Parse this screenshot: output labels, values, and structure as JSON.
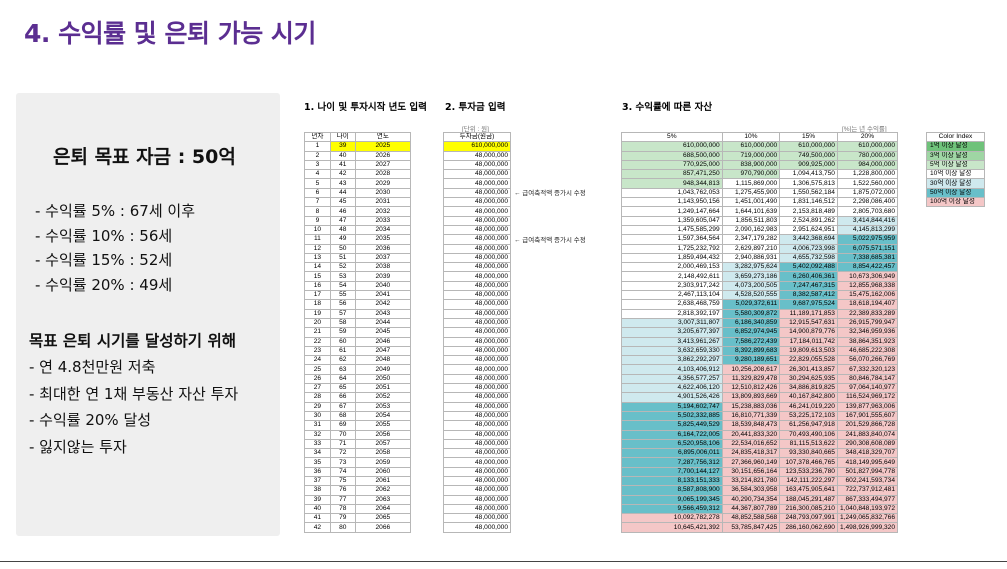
{
  "title": "4. 수익률 및 은퇴 가능 시기",
  "panel": {
    "goal": "은퇴 목표 자금 : 50억",
    "rates": [
      "- 수익률   5% : 67세 이후",
      "- 수익률 10% : 56세",
      "- 수익률 15% : 52세",
      "- 수익률 20% : 49세"
    ],
    "plan_title": "목표 은퇴 시기를 달성하기 위해",
    "plan_items": [
      "- 연 4.8천만원 저축",
      "- 최대한 연 1채 부동산 자산 투자",
      "- 수익률 20% 달성",
      "- 잃지않는 투자"
    ]
  },
  "sections": {
    "s1": "1. 나이 및 투자시작 년도 입력",
    "s2": "2. 투자금 입력",
    "s3": "3. 수익률에 따른 자산"
  },
  "units": {
    "invest": "[단위 : 원]",
    "assets": "[%]는 년 수익률]"
  },
  "headers": {
    "years": [
      "년차",
      "나이",
      "연도"
    ],
    "invest": "투자금(원금)",
    "assets": [
      "5%",
      "10%",
      "15%",
      "20%"
    ]
  },
  "notes": [
    "← 급여축적액 증가시 수정",
    "← 급여축적액 증가시 수정"
  ],
  "legend": {
    "header": "Color Index",
    "items": [
      "1억 이상 달성",
      "3억 이상 달성",
      "5억 이상 달성",
      "10억 이상 달성",
      "30억 이상 달성",
      "50억 이상 달성",
      "100억 이상 달성"
    ],
    "colors": [
      "#6fc27a",
      "#9fd6a4",
      "#c8e6c9",
      "#ffffff",
      "#cfe9ee",
      "#68bfc9",
      "#f4c7c7"
    ]
  },
  "colors": {
    "title": "#5b2e91",
    "start_highlight": "#ffff00"
  },
  "rows": [
    [
      "1",
      "39",
      "2025",
      "610,000,000",
      "610,000,000",
      "610,000,000",
      "610,000,000",
      "610,000,000"
    ],
    [
      "2",
      "40",
      "2026",
      "48,000,000",
      "688,500,000",
      "719,000,000",
      "749,500,000",
      "780,000,000"
    ],
    [
      "3",
      "41",
      "2027",
      "48,000,000",
      "770,925,000",
      "838,900,000",
      "909,925,000",
      "984,000,000"
    ],
    [
      "4",
      "42",
      "2028",
      "48,000,000",
      "857,471,250",
      "970,790,000",
      "1,094,413,750",
      "1,228,800,000"
    ],
    [
      "5",
      "43",
      "2029",
      "48,000,000",
      "948,344,813",
      "1,115,869,000",
      "1,306,575,813",
      "1,522,560,000"
    ],
    [
      "6",
      "44",
      "2030",
      "48,000,000",
      "1,043,762,053",
      "1,275,455,900",
      "1,550,562,184",
      "1,875,072,000"
    ],
    [
      "7",
      "45",
      "2031",
      "48,000,000",
      "1,143,950,156",
      "1,451,001,490",
      "1,831,146,512",
      "2,298,086,400"
    ],
    [
      "8",
      "46",
      "2032",
      "48,000,000",
      "1,249,147,664",
      "1,644,101,639",
      "2,153,818,489",
      "2,805,703,680"
    ],
    [
      "9",
      "47",
      "2033",
      "48,000,000",
      "1,359,605,047",
      "1,856,511,803",
      "2,524,891,262",
      "3,414,844,416"
    ],
    [
      "10",
      "48",
      "2034",
      "48,000,000",
      "1,475,585,299",
      "2,090,162,983",
      "2,951,624,951",
      "4,145,813,299"
    ],
    [
      "11",
      "49",
      "2035",
      "48,000,000",
      "1,597,364,564",
      "2,347,179,282",
      "3,442,368,694",
      "5,022,975,959"
    ],
    [
      "12",
      "50",
      "2036",
      "48,000,000",
      "1,725,232,792",
      "2,629,897,210",
      "4,006,723,998",
      "6,075,571,151"
    ],
    [
      "13",
      "51",
      "2037",
      "48,000,000",
      "1,859,494,432",
      "2,940,886,931",
      "4,655,732,598",
      "7,338,685,381"
    ],
    [
      "14",
      "52",
      "2038",
      "48,000,000",
      "2,000,469,153",
      "3,282,975,624",
      "5,402,092,488",
      "8,854,422,457"
    ],
    [
      "15",
      "53",
      "2039",
      "48,000,000",
      "2,148,492,611",
      "3,659,273,186",
      "6,260,406,361",
      "10,673,306,949"
    ],
    [
      "16",
      "54",
      "2040",
      "48,000,000",
      "2,303,917,242",
      "4,073,200,505",
      "7,247,467,315",
      "12,855,968,338"
    ],
    [
      "17",
      "55",
      "2041",
      "48,000,000",
      "2,467,113,104",
      "4,528,520,555",
      "8,382,587,412",
      "15,475,162,006"
    ],
    [
      "18",
      "56",
      "2042",
      "48,000,000",
      "2,638,468,759",
      "5,029,372,611",
      "9,687,975,524",
      "18,618,194,407"
    ],
    [
      "19",
      "57",
      "2043",
      "48,000,000",
      "2,818,392,197",
      "5,580,309,872",
      "11,189,171,853",
      "22,389,833,289"
    ],
    [
      "20",
      "58",
      "2044",
      "48,000,000",
      "3,007,311,807",
      "6,186,340,859",
      "12,915,547,631",
      "26,915,799,947"
    ],
    [
      "21",
      "59",
      "2045",
      "48,000,000",
      "3,205,677,397",
      "6,852,974,945",
      "14,900,879,776",
      "32,346,959,936"
    ],
    [
      "22",
      "60",
      "2046",
      "48,000,000",
      "3,413,961,267",
      "7,586,272,439",
      "17,184,011,742",
      "38,864,351,923"
    ],
    [
      "23",
      "61",
      "2047",
      "48,000,000",
      "3,632,659,330",
      "8,392,899,683",
      "19,809,613,503",
      "46,685,222,308"
    ],
    [
      "24",
      "62",
      "2048",
      "48,000,000",
      "3,862,292,297",
      "9,280,189,651",
      "22,829,055,528",
      "56,070,266,769"
    ],
    [
      "25",
      "63",
      "2049",
      "48,000,000",
      "4,103,406,912",
      "10,256,208,617",
      "26,301,413,857",
      "67,332,320,123"
    ],
    [
      "26",
      "64",
      "2050",
      "48,000,000",
      "4,356,577,257",
      "11,329,829,478",
      "30,294,625,935",
      "80,846,784,147"
    ],
    [
      "27",
      "65",
      "2051",
      "48,000,000",
      "4,622,406,120",
      "12,510,812,426",
      "34,886,819,825",
      "97,064,140,977"
    ],
    [
      "28",
      "66",
      "2052",
      "48,000,000",
      "4,901,526,426",
      "13,809,893,669",
      "40,167,842,800",
      "116,524,969,172"
    ],
    [
      "29",
      "67",
      "2053",
      "48,000,000",
      "5,194,602,747",
      "15,238,883,036",
      "46,241,019,220",
      "139,877,963,006"
    ],
    [
      "30",
      "68",
      "2054",
      "48,000,000",
      "5,502,332,885",
      "16,810,771,339",
      "53,225,172,103",
      "167,901,555,607"
    ],
    [
      "31",
      "69",
      "2055",
      "48,000,000",
      "5,825,449,529",
      "18,539,848,473",
      "61,256,947,918",
      "201,529,866,728"
    ],
    [
      "32",
      "70",
      "2056",
      "48,000,000",
      "6,164,722,005",
      "20,441,833,320",
      "70,493,490,106",
      "241,883,840,074"
    ],
    [
      "33",
      "71",
      "2057",
      "48,000,000",
      "6,520,958,106",
      "22,534,016,652",
      "81,115,513,622",
      "290,308,608,089"
    ],
    [
      "34",
      "72",
      "2058",
      "48,000,000",
      "6,895,006,011",
      "24,835,418,317",
      "93,330,840,665",
      "348,418,329,707"
    ],
    [
      "35",
      "73",
      "2059",
      "48,000,000",
      "7,287,756,312",
      "27,366,960,149",
      "107,378,466,765",
      "418,149,995,649"
    ],
    [
      "36",
      "74",
      "2060",
      "48,000,000",
      "7,700,144,127",
      "30,151,656,164",
      "123,533,236,780",
      "501,827,994,778"
    ],
    [
      "37",
      "75",
      "2061",
      "48,000,000",
      "8,133,151,333",
      "33,214,821,780",
      "142,111,222,297",
      "602,241,593,734"
    ],
    [
      "38",
      "76",
      "2062",
      "48,000,000",
      "8,587,808,900",
      "36,584,303,958",
      "163,475,905,641",
      "722,737,912,481"
    ],
    [
      "39",
      "77",
      "2063",
      "48,000,000",
      "9,065,199,345",
      "40,290,734,354",
      "188,045,291,487",
      "867,333,494,977"
    ],
    [
      "40",
      "78",
      "2064",
      "48,000,000",
      "9,566,459,312",
      "44,367,807,789",
      "216,300,085,210",
      "1,040,848,193,972"
    ],
    [
      "41",
      "79",
      "2065",
      "48,000,000",
      "10,092,782,278",
      "48,852,588,568",
      "248,793,097,991",
      "1,249,065,832,766"
    ],
    [
      "42",
      "80",
      "2066",
      "48,000,000",
      "10,645,421,392",
      "53,785,847,425",
      "286,160,062,690",
      "1,498,926,999,320"
    ]
  ]
}
